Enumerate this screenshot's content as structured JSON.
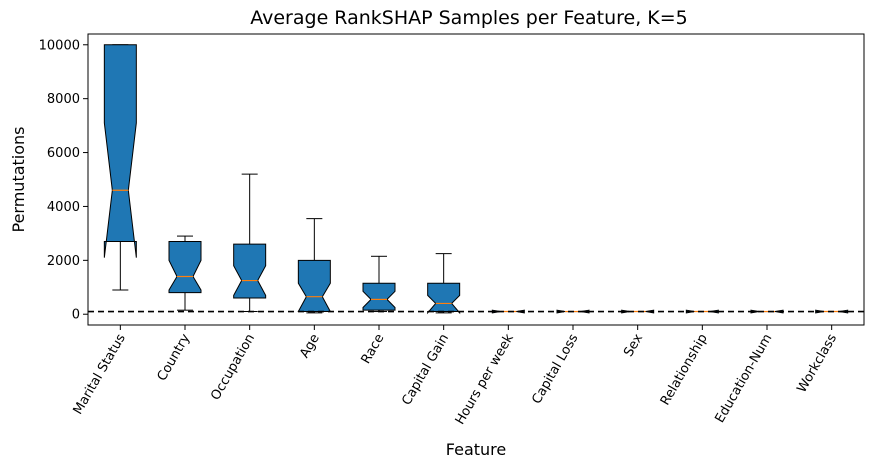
{
  "chart_data": {
    "type": "box",
    "title": "Average RankSHAP Samples per Feature, K=5",
    "xlabel": "Feature",
    "ylabel": "Permutations",
    "ylim": [
      -400,
      10400
    ],
    "yticks": [
      0,
      2000,
      4000,
      6000,
      8000,
      10000
    ],
    "notched": true,
    "box_color": "#1f77b4",
    "median_color": "#ff7f0e",
    "reference_line": {
      "y": 100,
      "style": "dashed",
      "color": "#000000"
    },
    "categories": [
      "Marital Status",
      "Country",
      "Occupation",
      "Age",
      "Race",
      "Capital Gain",
      "Hours per week",
      "Capital Loss",
      "Sex",
      "Relationship",
      "Education-Num",
      "Workclass"
    ],
    "boxes": [
      {
        "whislo": 900,
        "q1": 2700,
        "med": 4600,
        "q3": 10000,
        "whishi": 10000,
        "notch_lo": 2100,
        "notch_hi": 7100
      },
      {
        "whislo": 150,
        "q1": 800,
        "med": 1400,
        "q3": 2700,
        "whishi": 2900,
        "notch_lo": 900,
        "notch_hi": 2000
      },
      {
        "whislo": 100,
        "q1": 600,
        "med": 1250,
        "q3": 2600,
        "whishi": 5200,
        "notch_lo": 700,
        "notch_hi": 1800
      },
      {
        "whislo": 50,
        "q1": 100,
        "med": 650,
        "q3": 2000,
        "whishi": 3550,
        "notch_lo": 100,
        "notch_hi": 1150
      },
      {
        "whislo": 100,
        "q1": 150,
        "med": 550,
        "q3": 1150,
        "whishi": 2150,
        "notch_lo": 250,
        "notch_hi": 850
      },
      {
        "whislo": 50,
        "q1": 100,
        "med": 400,
        "q3": 1150,
        "whishi": 2250,
        "notch_lo": 50,
        "notch_hi": 700
      },
      {
        "whislo": 100,
        "q1": 100,
        "med": 100,
        "q3": 100,
        "whishi": 100,
        "notch_lo": 50,
        "notch_hi": 150
      },
      {
        "whislo": 100,
        "q1": 100,
        "med": 100,
        "q3": 100,
        "whishi": 100,
        "notch_lo": 50,
        "notch_hi": 150
      },
      {
        "whislo": 100,
        "q1": 100,
        "med": 100,
        "q3": 100,
        "whishi": 100,
        "notch_lo": 50,
        "notch_hi": 150
      },
      {
        "whislo": 100,
        "q1": 100,
        "med": 100,
        "q3": 100,
        "whishi": 100,
        "notch_lo": 50,
        "notch_hi": 150
      },
      {
        "whislo": 100,
        "q1": 100,
        "med": 100,
        "q3": 100,
        "whishi": 100,
        "notch_lo": 50,
        "notch_hi": 150
      },
      {
        "whislo": 100,
        "q1": 100,
        "med": 100,
        "q3": 100,
        "whishi": 100,
        "notch_lo": 50,
        "notch_hi": 150
      }
    ]
  }
}
